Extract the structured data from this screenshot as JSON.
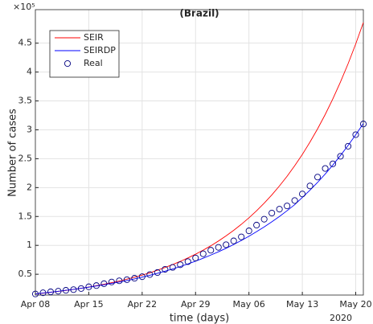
{
  "chart_data": {
    "type": "line",
    "title": "(Brazil)",
    "xlabel": "time (days)",
    "ylabel": "Number of cases",
    "y_exponent_label": "×10⁵",
    "x_year_label": "2020",
    "x": [
      "2020-04-08",
      "2020-04-09",
      "2020-04-10",
      "2020-04-11",
      "2020-04-12",
      "2020-04-13",
      "2020-04-14",
      "2020-04-15",
      "2020-04-16",
      "2020-04-17",
      "2020-04-18",
      "2020-04-19",
      "2020-04-20",
      "2020-04-21",
      "2020-04-22",
      "2020-04-23",
      "2020-04-24",
      "2020-04-25",
      "2020-04-26",
      "2020-04-27",
      "2020-04-28",
      "2020-04-29",
      "2020-04-30",
      "2020-05-01",
      "2020-05-02",
      "2020-05-03",
      "2020-05-04",
      "2020-05-05",
      "2020-05-06",
      "2020-05-07",
      "2020-05-08",
      "2020-05-09",
      "2020-05-10",
      "2020-05-11",
      "2020-05-12",
      "2020-05-13",
      "2020-05-14",
      "2020-05-15",
      "2020-05-16",
      "2020-05-17",
      "2020-05-18",
      "2020-05-19",
      "2020-05-20",
      "2020-05-21"
    ],
    "series": [
      {
        "name": "SEIR",
        "color": "#ff0000",
        "style": "line",
        "values": [
          0.16,
          0.173,
          0.188,
          0.203,
          0.22,
          0.238,
          0.258,
          0.279,
          0.302,
          0.327,
          0.354,
          0.383,
          0.415,
          0.449,
          0.486,
          0.526,
          0.57,
          0.617,
          0.668,
          0.723,
          0.783,
          0.847,
          0.917,
          0.993,
          1.075,
          1.164,
          1.26,
          1.364,
          1.477,
          1.599,
          1.731,
          1.874,
          2.029,
          2.196,
          2.378,
          2.574,
          2.787,
          3.017,
          3.266,
          3.536,
          3.828,
          4.144,
          4.487,
          4.857
        ]
      },
      {
        "name": "SEIRDP",
        "color": "#0000ff",
        "style": "line",
        "values": [
          0.16,
          0.175,
          0.19,
          0.206,
          0.222,
          0.239,
          0.257,
          0.276,
          0.297,
          0.319,
          0.342,
          0.366,
          0.392,
          0.42,
          0.45,
          0.482,
          0.516,
          0.553,
          0.592,
          0.634,
          0.679,
          0.727,
          0.778,
          0.832,
          0.889,
          0.95,
          1.015,
          1.084,
          1.158,
          1.237,
          1.32,
          1.408,
          1.501,
          1.6,
          1.705,
          1.83,
          1.955,
          2.09,
          2.235,
          2.39,
          2.555,
          2.73,
          2.915,
          3.11
        ]
      },
      {
        "name": "Real",
        "color": "#000080",
        "style": "marker",
        "values": [
          0.159,
          0.179,
          0.196,
          0.207,
          0.222,
          0.234,
          0.253,
          0.283,
          0.304,
          0.337,
          0.366,
          0.387,
          0.406,
          0.431,
          0.458,
          0.495,
          0.53,
          0.585,
          0.619,
          0.665,
          0.719,
          0.782,
          0.854,
          0.916,
          0.966,
          1.011,
          1.078,
          1.147,
          1.252,
          1.351,
          1.453,
          1.559,
          1.627,
          1.683,
          1.776,
          1.89,
          2.029,
          2.182,
          2.331,
          2.411,
          2.542,
          2.716,
          2.916,
          3.101
        ]
      }
    ],
    "xlim": [
      "2020-04-08",
      "2020-05-21"
    ],
    "xticks": [
      {
        "value": "2020-04-08",
        "label": "Apr 08"
      },
      {
        "value": "2020-04-15",
        "label": "Apr 15"
      },
      {
        "value": "2020-04-22",
        "label": "Apr 22"
      },
      {
        "value": "2020-04-29",
        "label": "Apr 29"
      },
      {
        "value": "2020-05-06",
        "label": "May 06"
      },
      {
        "value": "2020-05-13",
        "label": "May 13"
      },
      {
        "value": "2020-05-20",
        "label": "May 20"
      }
    ],
    "ylim": [
      0.14,
      5.08
    ],
    "yticks": [
      0.5,
      1,
      1.5,
      2,
      2.5,
      3,
      3.5,
      4,
      4.5
    ],
    "grid": true,
    "legend": "upper-left"
  }
}
